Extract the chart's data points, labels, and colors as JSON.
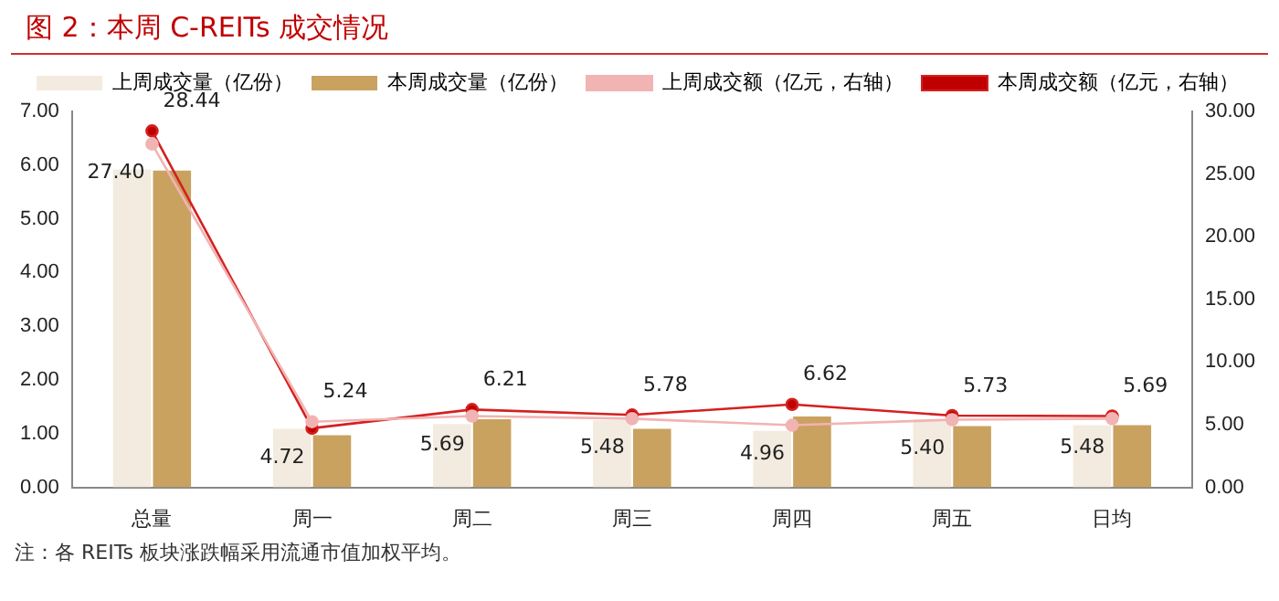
{
  "chart_data": {
    "type": "bar",
    "title": "图 2：本周 C-REITs 成交情况",
    "categories": [
      "总量",
      "周一",
      "周二",
      "周三",
      "周四",
      "周五",
      "日均"
    ],
    "series": [
      {
        "name": "上周成交量（亿份）",
        "color": "#f3ebdf",
        "values": [
          5.92,
          1.09,
          1.18,
          1.25,
          1.05,
          1.27,
          1.16
        ]
      },
      {
        "name": "本周成交量（亿份）",
        "color": "#c9a260",
        "values": [
          5.9,
          0.97,
          1.27,
          1.09,
          1.32,
          1.14,
          1.16
        ]
      },
      {
        "name": "上周成交额（亿元，右轴）",
        "type": "line",
        "axis": "y2",
        "color": "#f2b3b3",
        "values": [
          27.4,
          5.24,
          5.69,
          5.48,
          4.96,
          5.4,
          5.48
        ],
        "value_labels": [
          "27.40",
          "5.24",
          "5.69",
          "5.48",
          "4.96",
          "5.40",
          "5.48"
        ]
      },
      {
        "name": "本周成交额（亿元，右轴）",
        "type": "line",
        "axis": "y2",
        "color": "#d42020",
        "values": [
          28.44,
          4.72,
          6.21,
          5.78,
          6.62,
          5.73,
          5.69
        ],
        "value_labels": [
          "28.44",
          "4.72",
          "6.21",
          "5.78",
          "6.62",
          "5.73",
          "5.69"
        ]
      }
    ],
    "ylim": [
      0,
      7
    ],
    "yticks": [
      {
        "value": 0,
        "label": "0.00"
      },
      {
        "value": 1,
        "label": "1.00"
      },
      {
        "value": 2,
        "label": "2.00"
      },
      {
        "value": 3,
        "label": "3.00"
      },
      {
        "value": 4,
        "label": "4.00"
      },
      {
        "value": 5,
        "label": "5.00"
      },
      {
        "value": 6,
        "label": "6.00"
      },
      {
        "value": 7,
        "label": "7.00"
      }
    ],
    "y2lim": [
      0,
      30
    ],
    "y2ticks": [
      {
        "value": 0,
        "label": "0.00"
      },
      {
        "value": 5,
        "label": "5.00"
      },
      {
        "value": 10,
        "label": "10.00"
      },
      {
        "value": 15,
        "label": "15.00"
      },
      {
        "value": 20,
        "label": "20.00"
      },
      {
        "value": 25,
        "label": "25.00"
      },
      {
        "value": 30,
        "label": "30.00"
      }
    ],
    "legend": "top",
    "grid": false,
    "marker": "circle",
    "annotations": [
      "注：各 REITs 板块涨跌幅采用流通市值加权平均。"
    ]
  }
}
